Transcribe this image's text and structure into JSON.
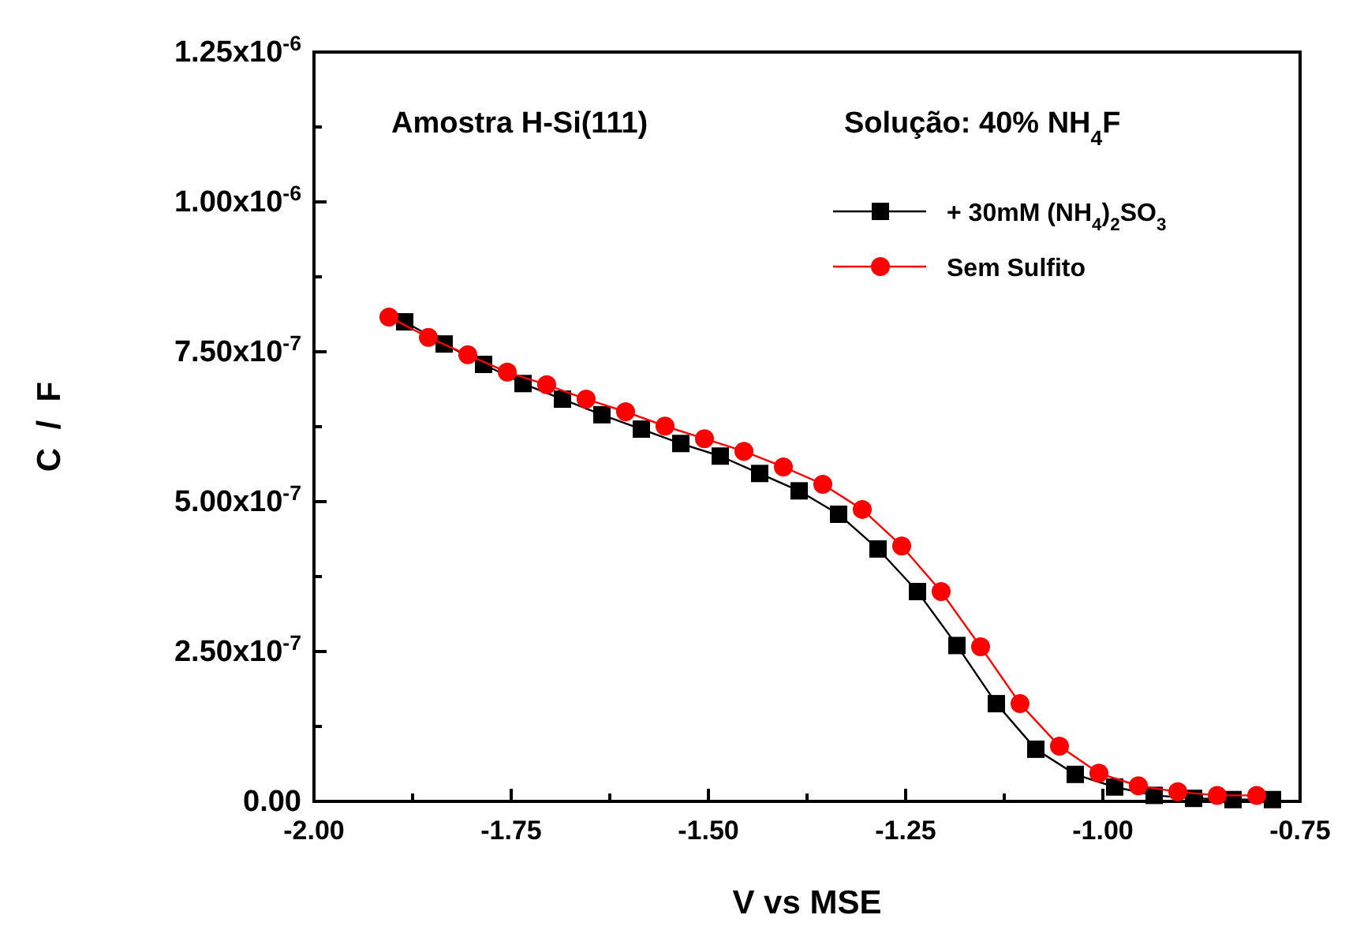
{
  "chart_data": {
    "type": "line",
    "xlabel": "V vs MSE",
    "ylabel": "C  /  F",
    "annotations": [
      "Amostra H-Si(111)",
      "Solução: 40% NH$_{4}$F"
    ],
    "xlim": [
      -2,
      -0.75
    ],
    "xticks": [
      {
        "value": -2,
        "label": "-2.00"
      },
      {
        "value": -1.875,
        "label": null
      },
      {
        "value": -1.75,
        "label": "-1.75"
      },
      {
        "value": -1.625,
        "label": null
      },
      {
        "value": -1.5,
        "label": "-1.50"
      },
      {
        "value": -1.375,
        "label": null
      },
      {
        "value": -1.25,
        "label": "-1.25"
      },
      {
        "value": -1.125,
        "label": null
      },
      {
        "value": -1,
        "label": "-1.00"
      },
      {
        "value": -0.875,
        "label": null
      },
      {
        "value": -0.75,
        "label": "-0.75"
      }
    ],
    "ylim": [
      0,
      1.25e-06
    ],
    "yticks": [
      {
        "value": 0,
        "label": "0.00"
      },
      {
        "value": 1.25e-07,
        "label": null
      },
      {
        "value": 2.5e-07,
        "label": "2.50x10$^{-7}$"
      },
      {
        "value": 3.75e-07,
        "label": null
      },
      {
        "value": 5e-07,
        "label": "5.00x10$^{-7}$"
      },
      {
        "value": 6.25e-07,
        "label": null
      },
      {
        "value": 7.5e-07,
        "label": "7.50x10$^{-7}$"
      },
      {
        "value": 8.75e-07,
        "label": null
      },
      {
        "value": 1e-06,
        "label": "1.00x10$^{-6}$"
      },
      {
        "value": 1.125e-06,
        "label": null
      },
      {
        "value": 1.25e-06,
        "label": "1.25x10$^{-6}$"
      }
    ],
    "legend": "top right",
    "grid": false,
    "line_style": "solid",
    "series": [
      {
        "name": "+ 30mM (NH$_{4}$)$_{2}$SO$_{3}$",
        "color": "#000000",
        "marker": "square",
        "x": [
          -1.885,
          -1.835,
          -1.785,
          -1.735,
          -1.685,
          -1.635,
          -1.585,
          -1.535,
          -1.485,
          -1.435,
          -1.385,
          -1.335,
          -1.285,
          -1.235,
          -1.185,
          -1.135,
          -1.085,
          -1.035,
          -0.985,
          -0.935,
          -0.885,
          -0.835,
          -0.785
        ],
        "values": [
          8e-07,
          7.63e-07,
          7.29e-07,
          6.97e-07,
          6.71e-07,
          6.45e-07,
          6.21e-07,
          5.97e-07,
          5.76e-07,
          5.47e-07,
          5.18e-07,
          4.79e-07,
          4.21e-07,
          3.5e-07,
          2.6e-07,
          1.63e-07,
          8.7e-08,
          4.5e-08,
          2.4e-08,
          1e-08,
          5e-09,
          3e-09,
          3e-09
        ]
      },
      {
        "name": "Sem Sulfito",
        "color": "#ff0000",
        "marker": "circle",
        "x": [
          -1.905,
          -1.855,
          -1.805,
          -1.755,
          -1.705,
          -1.655,
          -1.605,
          -1.555,
          -1.505,
          -1.455,
          -1.405,
          -1.355,
          -1.305,
          -1.255,
          -1.205,
          -1.155,
          -1.105,
          -1.055,
          -1.005,
          -0.955,
          -0.905,
          -0.855,
          -0.805
        ],
        "values": [
          8.08e-07,
          7.74e-07,
          7.45e-07,
          7.16e-07,
          6.95e-07,
          6.71e-07,
          6.5e-07,
          6.26e-07,
          6.05e-07,
          5.84e-07,
          5.58e-07,
          5.29e-07,
          4.87e-07,
          4.26e-07,
          3.5e-07,
          2.58e-07,
          1.63e-07,
          9.2e-08,
          4.7e-08,
          2.6e-08,
          1.6e-08,
          1e-08,
          1e-08
        ]
      }
    ]
  }
}
